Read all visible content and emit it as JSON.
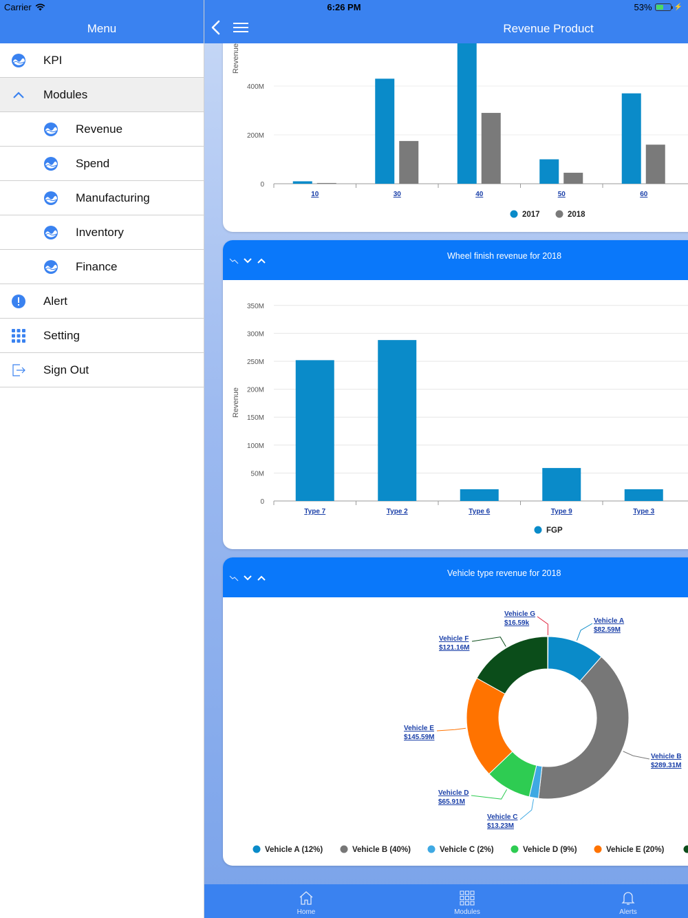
{
  "status_bar": {
    "carrier": "Carrier",
    "time": "6:26 PM",
    "battery": "53%",
    "battery_level": 0.53
  },
  "menu": {
    "title": "Menu",
    "items": [
      {
        "id": "kpi",
        "label": "KPI",
        "icon": "wave-icon",
        "sub": false,
        "active": false
      },
      {
        "id": "modules",
        "label": "Modules",
        "icon": "chevron-up-icon",
        "sub": false,
        "active": true
      },
      {
        "id": "revenue",
        "label": "Revenue",
        "icon": "wave-icon",
        "sub": true,
        "active": false
      },
      {
        "id": "spend",
        "label": "Spend",
        "icon": "wave-icon",
        "sub": true,
        "active": false
      },
      {
        "id": "manufacturing",
        "label": "Manufacturing",
        "icon": "wave-icon",
        "sub": true,
        "active": false
      },
      {
        "id": "inventory",
        "label": "Inventory",
        "icon": "wave-icon",
        "sub": true,
        "active": false
      },
      {
        "id": "finance",
        "label": "Finance",
        "icon": "wave-icon",
        "sub": true,
        "active": false
      },
      {
        "id": "alert",
        "label": "Alert",
        "icon": "exclamation-icon",
        "sub": false,
        "active": false
      },
      {
        "id": "setting",
        "label": "Setting",
        "icon": "grid-icon",
        "sub": false,
        "active": false
      },
      {
        "id": "signout",
        "label": "Sign Out",
        "icon": "sign-out-icon",
        "sub": false,
        "active": false
      }
    ]
  },
  "navbar": {
    "title": "Revenue Product"
  },
  "colors": {
    "blue": "#0a8bc9",
    "gray": "#7a7a7a",
    "header": "#3a82f0",
    "card_head": "#0a78fa"
  },
  "chart_data": [
    {
      "type": "bar",
      "ylabel": "Revenue",
      "categories": [
        "10",
        "30",
        "40",
        "50",
        "60"
      ],
      "y_ticks": [
        "0",
        "200M",
        "400M"
      ],
      "series": [
        {
          "name": "2017",
          "color": "#0a8bc9",
          "values": [
            10,
            430,
            590,
            100,
            370
          ]
        },
        {
          "name": "2018",
          "color": "#7a7a7a",
          "values": [
            3,
            175,
            290,
            45,
            160
          ]
        }
      ],
      "unit": "M"
    },
    {
      "type": "bar",
      "title": "Wheel finish revenue for 2018",
      "ylabel": "Revenue",
      "categories": [
        "Type 7",
        "Type 2",
        "Type 6",
        "Type 9",
        "Type 3"
      ],
      "y_ticks": [
        "0",
        "50M",
        "100M",
        "150M",
        "200M",
        "250M",
        "300M",
        "350M"
      ],
      "ylim": [
        0,
        350
      ],
      "series": [
        {
          "name": "FGP",
          "color": "#0a8bc9",
          "values": [
            252,
            288,
            21,
            59,
            21
          ]
        }
      ],
      "unit": "M"
    },
    {
      "type": "pie",
      "title": "Vehicle type revenue for 2018",
      "slices": [
        {
          "name": "Vehicle A",
          "value_label": "$82.59M",
          "value": 82.59,
          "percent": "12%",
          "color": "#0a8bc9"
        },
        {
          "name": "Vehicle B",
          "value_label": "$289.31M",
          "value": 289.31,
          "percent": "40%",
          "color": "#777777"
        },
        {
          "name": "Vehicle C",
          "value_label": "$13.23M",
          "value": 13.23,
          "percent": "2%",
          "color": "#3fa9e3"
        },
        {
          "name": "Vehicle D",
          "value_label": "$65.91M",
          "value": 65.91,
          "percent": "9%",
          "color": "#2ecc52"
        },
        {
          "name": "Vehicle E",
          "value_label": "$145.59M",
          "value": 145.59,
          "percent": "20%",
          "color": "#ff7300"
        },
        {
          "name": "Vehicle F",
          "value_label": "$121.16M",
          "value": 121.16,
          "percent": "",
          "color": "#0b4d1a"
        },
        {
          "name": "Vehicle G",
          "value_label": "$16.59k",
          "value": 0.01659,
          "percent": "",
          "color": "#e0203a"
        }
      ],
      "legend": [
        "Vehicle A (12%)",
        "Vehicle B (40%)",
        "Vehicle C (2%)",
        "Vehicle D (9%)",
        "Vehicle E (20%)"
      ]
    }
  ],
  "tabbar": {
    "items": [
      {
        "label": "Home"
      },
      {
        "label": "Modules"
      },
      {
        "label": "Alerts"
      }
    ]
  }
}
